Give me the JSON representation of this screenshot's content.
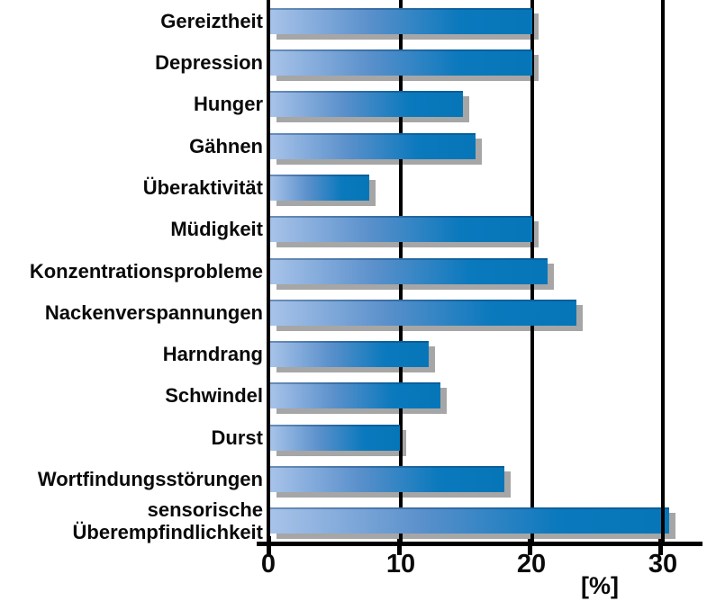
{
  "chart_data": {
    "type": "bar",
    "orientation": "horizontal",
    "title": "",
    "categories": [
      "Gereiztheit",
      "Depression",
      "Hunger",
      "Gähnen",
      "Überaktivität",
      "Müdigkeit",
      "Konzentrationsprobleme",
      "Nackenverspannungen",
      "Harndrang",
      "Schwindel",
      "Durst",
      "Wortfindungsstörungen",
      "sensorische Überempfindlichkeit"
    ],
    "values": [
      20,
      20,
      14.7,
      15.7,
      7.6,
      20,
      21.2,
      23.4,
      12.1,
      13,
      9.9,
      17.9,
      30.5
    ],
    "xlabel": "[%]",
    "x_ticks": [
      "0",
      "10",
      "20",
      "30"
    ],
    "x_tick_values": [
      0,
      10,
      20,
      30
    ],
    "xlim": [
      0,
      33.4
    ],
    "grid": "vertical-gridlines-at-ticks",
    "legend": "none",
    "colors": {
      "bar_gradient_left": "#a8c3e9",
      "bar_gradient_right": "#0676b8",
      "bar_shadow": "#a6a6a6",
      "axis": "#000000",
      "label_text": "#0a0a0a"
    }
  }
}
